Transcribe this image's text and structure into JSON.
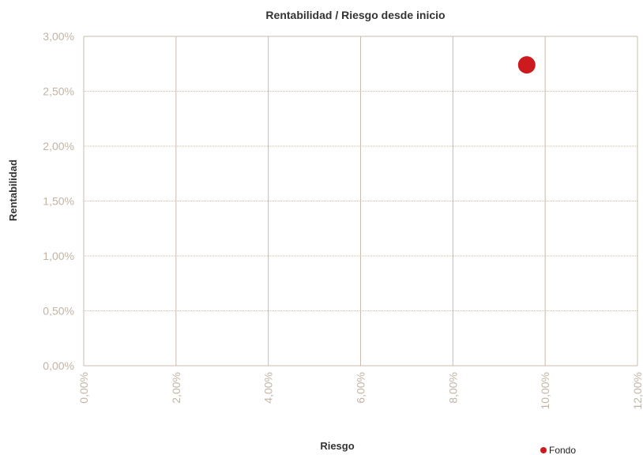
{
  "chart_data": {
    "type": "scatter",
    "title": "Rentabilidad / Riesgo desde inicio",
    "xlabel": "Riesgo",
    "ylabel": "Rentabilidad",
    "xlim": [
      0,
      12
    ],
    "ylim": [
      0,
      3
    ],
    "x_ticks": [
      "0,00%",
      "2,00%",
      "4,00%",
      "6,00%",
      "8,00%",
      "10,00%",
      "12,00%"
    ],
    "y_ticks": [
      "0,00%",
      "0,50%",
      "1,00%",
      "1,50%",
      "2,00%",
      "2,50%",
      "3,00%"
    ],
    "grid": true,
    "legend_position": "bottom-right",
    "series": [
      {
        "name": "Fondo",
        "color": "#cc1a1f",
        "points": [
          {
            "x": 9.6,
            "y": 2.74
          }
        ]
      }
    ]
  },
  "colors": {
    "gridline": "#c8bcae",
    "tick_text": "#c2b4a5",
    "point": "#cc1a1f"
  }
}
